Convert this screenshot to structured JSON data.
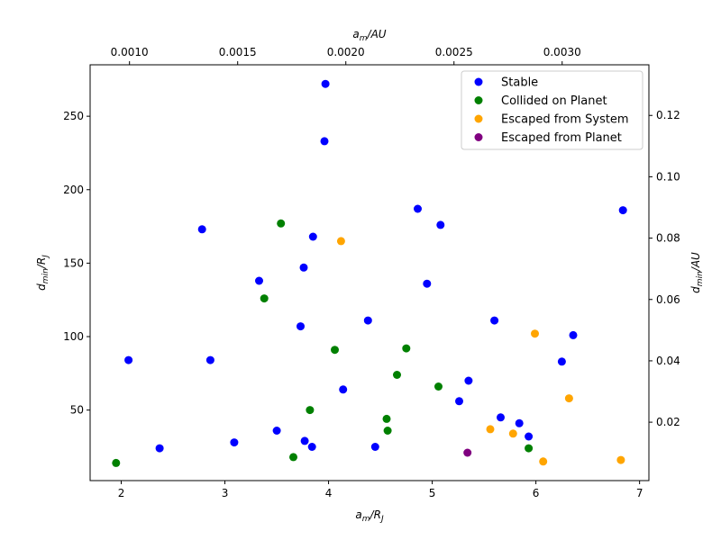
{
  "chart_data": {
    "type": "scatter",
    "xlabel_main": "a",
    "xlabel_sub": "m",
    "xlabel_slash": "/R",
    "xlabel_sub2": "J",
    "ylabel_main": "d",
    "ylabel_sub": "min",
    "ylabel_slash": "/R",
    "ylabel_sub2": "J",
    "top_xlabel_main": "a",
    "top_xlabel_sub": "m",
    "top_xlabel_rest": "/AU",
    "right_ylabel_main": "d",
    "right_ylabel_sub": "min",
    "right_ylabel_rest": "/AU",
    "xlim": [
      1.7,
      7.09
    ],
    "ylim": [
      2,
      285
    ],
    "top_xlim": [
      0.000818,
      0.003401
    ],
    "right_ylim": [
      0.00096,
      0.1365
    ],
    "x_ticks": [
      "2",
      "3",
      "4",
      "5",
      "6",
      "7"
    ],
    "x_tick_values": [
      2,
      3,
      4,
      5,
      6,
      7
    ],
    "y_ticks": [
      "50",
      "100",
      "150",
      "200",
      "250"
    ],
    "y_tick_values": [
      50,
      100,
      150,
      200,
      250
    ],
    "top_x_ticks": [
      "0.0010",
      "0.0015",
      "0.0020",
      "0.0025",
      "0.0030"
    ],
    "top_x_tick_values": [
      0.001,
      0.0015,
      0.002,
      0.0025,
      0.003
    ],
    "right_y_ticks": [
      "0.02",
      "0.04",
      "0.06",
      "0.08",
      "0.10",
      "0.12"
    ],
    "right_y_tick_values": [
      0.02,
      0.04,
      0.06,
      0.08,
      0.1,
      0.12
    ],
    "legend_position": "upper-right",
    "grid": false,
    "series": [
      {
        "name": "Stable",
        "color": "#0000ff",
        "points": [
          [
            2.07,
            84
          ],
          [
            2.37,
            24
          ],
          [
            2.78,
            173
          ],
          [
            2.86,
            84
          ],
          [
            3.09,
            28
          ],
          [
            3.33,
            138
          ],
          [
            3.5,
            36
          ],
          [
            3.73,
            107
          ],
          [
            3.76,
            147
          ],
          [
            3.77,
            29
          ],
          [
            3.84,
            25
          ],
          [
            3.85,
            168
          ],
          [
            3.96,
            233
          ],
          [
            3.97,
            272
          ],
          [
            4.14,
            64
          ],
          [
            4.38,
            111
          ],
          [
            4.45,
            25
          ],
          [
            4.86,
            187
          ],
          [
            4.95,
            136
          ],
          [
            5.08,
            176
          ],
          [
            5.26,
            56
          ],
          [
            5.35,
            70
          ],
          [
            5.6,
            111
          ],
          [
            5.66,
            45
          ],
          [
            5.84,
            41
          ],
          [
            5.93,
            32
          ],
          [
            6.25,
            83
          ],
          [
            6.36,
            101
          ],
          [
            6.84,
            186
          ]
        ]
      },
      {
        "name": "Collided on Planet",
        "color": "#008000",
        "points": [
          [
            1.95,
            14
          ],
          [
            3.38,
            126
          ],
          [
            3.54,
            177
          ],
          [
            3.66,
            18
          ],
          [
            3.82,
            50
          ],
          [
            4.06,
            91
          ],
          [
            4.56,
            44
          ],
          [
            4.57,
            36
          ],
          [
            4.66,
            74
          ],
          [
            4.75,
            92
          ],
          [
            5.06,
            66
          ],
          [
            5.93,
            24
          ]
        ]
      },
      {
        "name": "Escaped from System",
        "color": "#ffa500",
        "points": [
          [
            4.12,
            165
          ],
          [
            5.56,
            37
          ],
          [
            5.78,
            34
          ],
          [
            5.99,
            102
          ],
          [
            6.07,
            15
          ],
          [
            6.32,
            58
          ],
          [
            6.82,
            16
          ]
        ]
      },
      {
        "name": "Escaped from Planet",
        "color": "#800080",
        "points": [
          [
            5.34,
            21
          ]
        ]
      }
    ]
  }
}
